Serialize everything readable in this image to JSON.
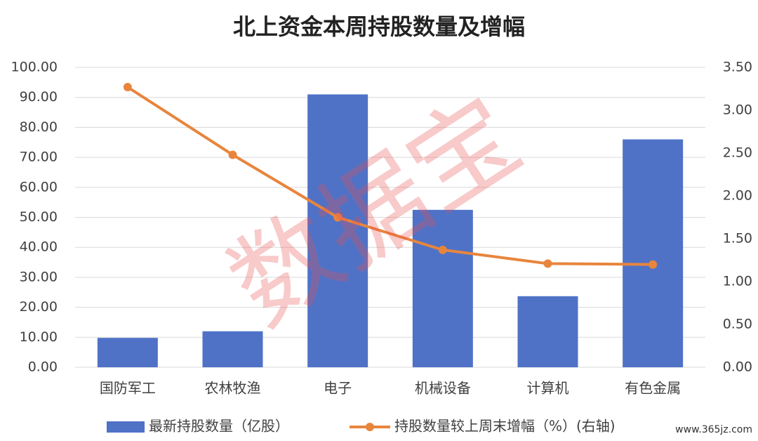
{
  "chart_data": {
    "type": "bar_line",
    "title": "北上资金本周持股数量及增幅",
    "categories": [
      "国防军工",
      "农林牧渔",
      "电子",
      "机械设备",
      "计算机",
      "有色金属"
    ],
    "series": [
      {
        "name": "最新持股数量（亿股）",
        "type": "bar",
        "color": "#4f72c7",
        "values": [
          9.8,
          12.0,
          91.0,
          52.5,
          23.7,
          76.0
        ]
      },
      {
        "name": "持股数量较上周末增幅（%）(右轴)",
        "type": "line",
        "axis": "y2",
        "color": "#e8853d",
        "values": [
          3.27,
          2.48,
          1.75,
          1.37,
          1.21,
          1.2
        ]
      }
    ],
    "ylim": [
      0,
      100
    ],
    "yticks": [
      {
        "value": 0,
        "label": "0.00"
      },
      {
        "value": 10,
        "label": "10.00"
      },
      {
        "value": 20,
        "label": "20.00"
      },
      {
        "value": 30,
        "label": "30.00"
      },
      {
        "value": 40,
        "label": "40.00"
      },
      {
        "value": 50,
        "label": "50.00"
      },
      {
        "value": 60,
        "label": "60.00"
      },
      {
        "value": 70,
        "label": "70.00"
      },
      {
        "value": 80,
        "label": "80.00"
      },
      {
        "value": 90,
        "label": "90.00"
      },
      {
        "value": 100,
        "label": "100.00"
      }
    ],
    "y2lim": [
      0,
      3.5
    ],
    "y2ticks": [
      {
        "value": 0,
        "label": "0.00"
      },
      {
        "value": 0.5,
        "label": "0.50"
      },
      {
        "value": 1,
        "label": "1.00"
      },
      {
        "value": 1.5,
        "label": "1.50"
      },
      {
        "value": 2,
        "label": "2.00"
      },
      {
        "value": 2.5,
        "label": "2.50"
      },
      {
        "value": 3,
        "label": "3.00"
      },
      {
        "value": 3.5,
        "label": "3.50"
      }
    ],
    "grid": true,
    "legend": "bottom",
    "watermark": "数据宝",
    "source": "www.365jz.com"
  }
}
